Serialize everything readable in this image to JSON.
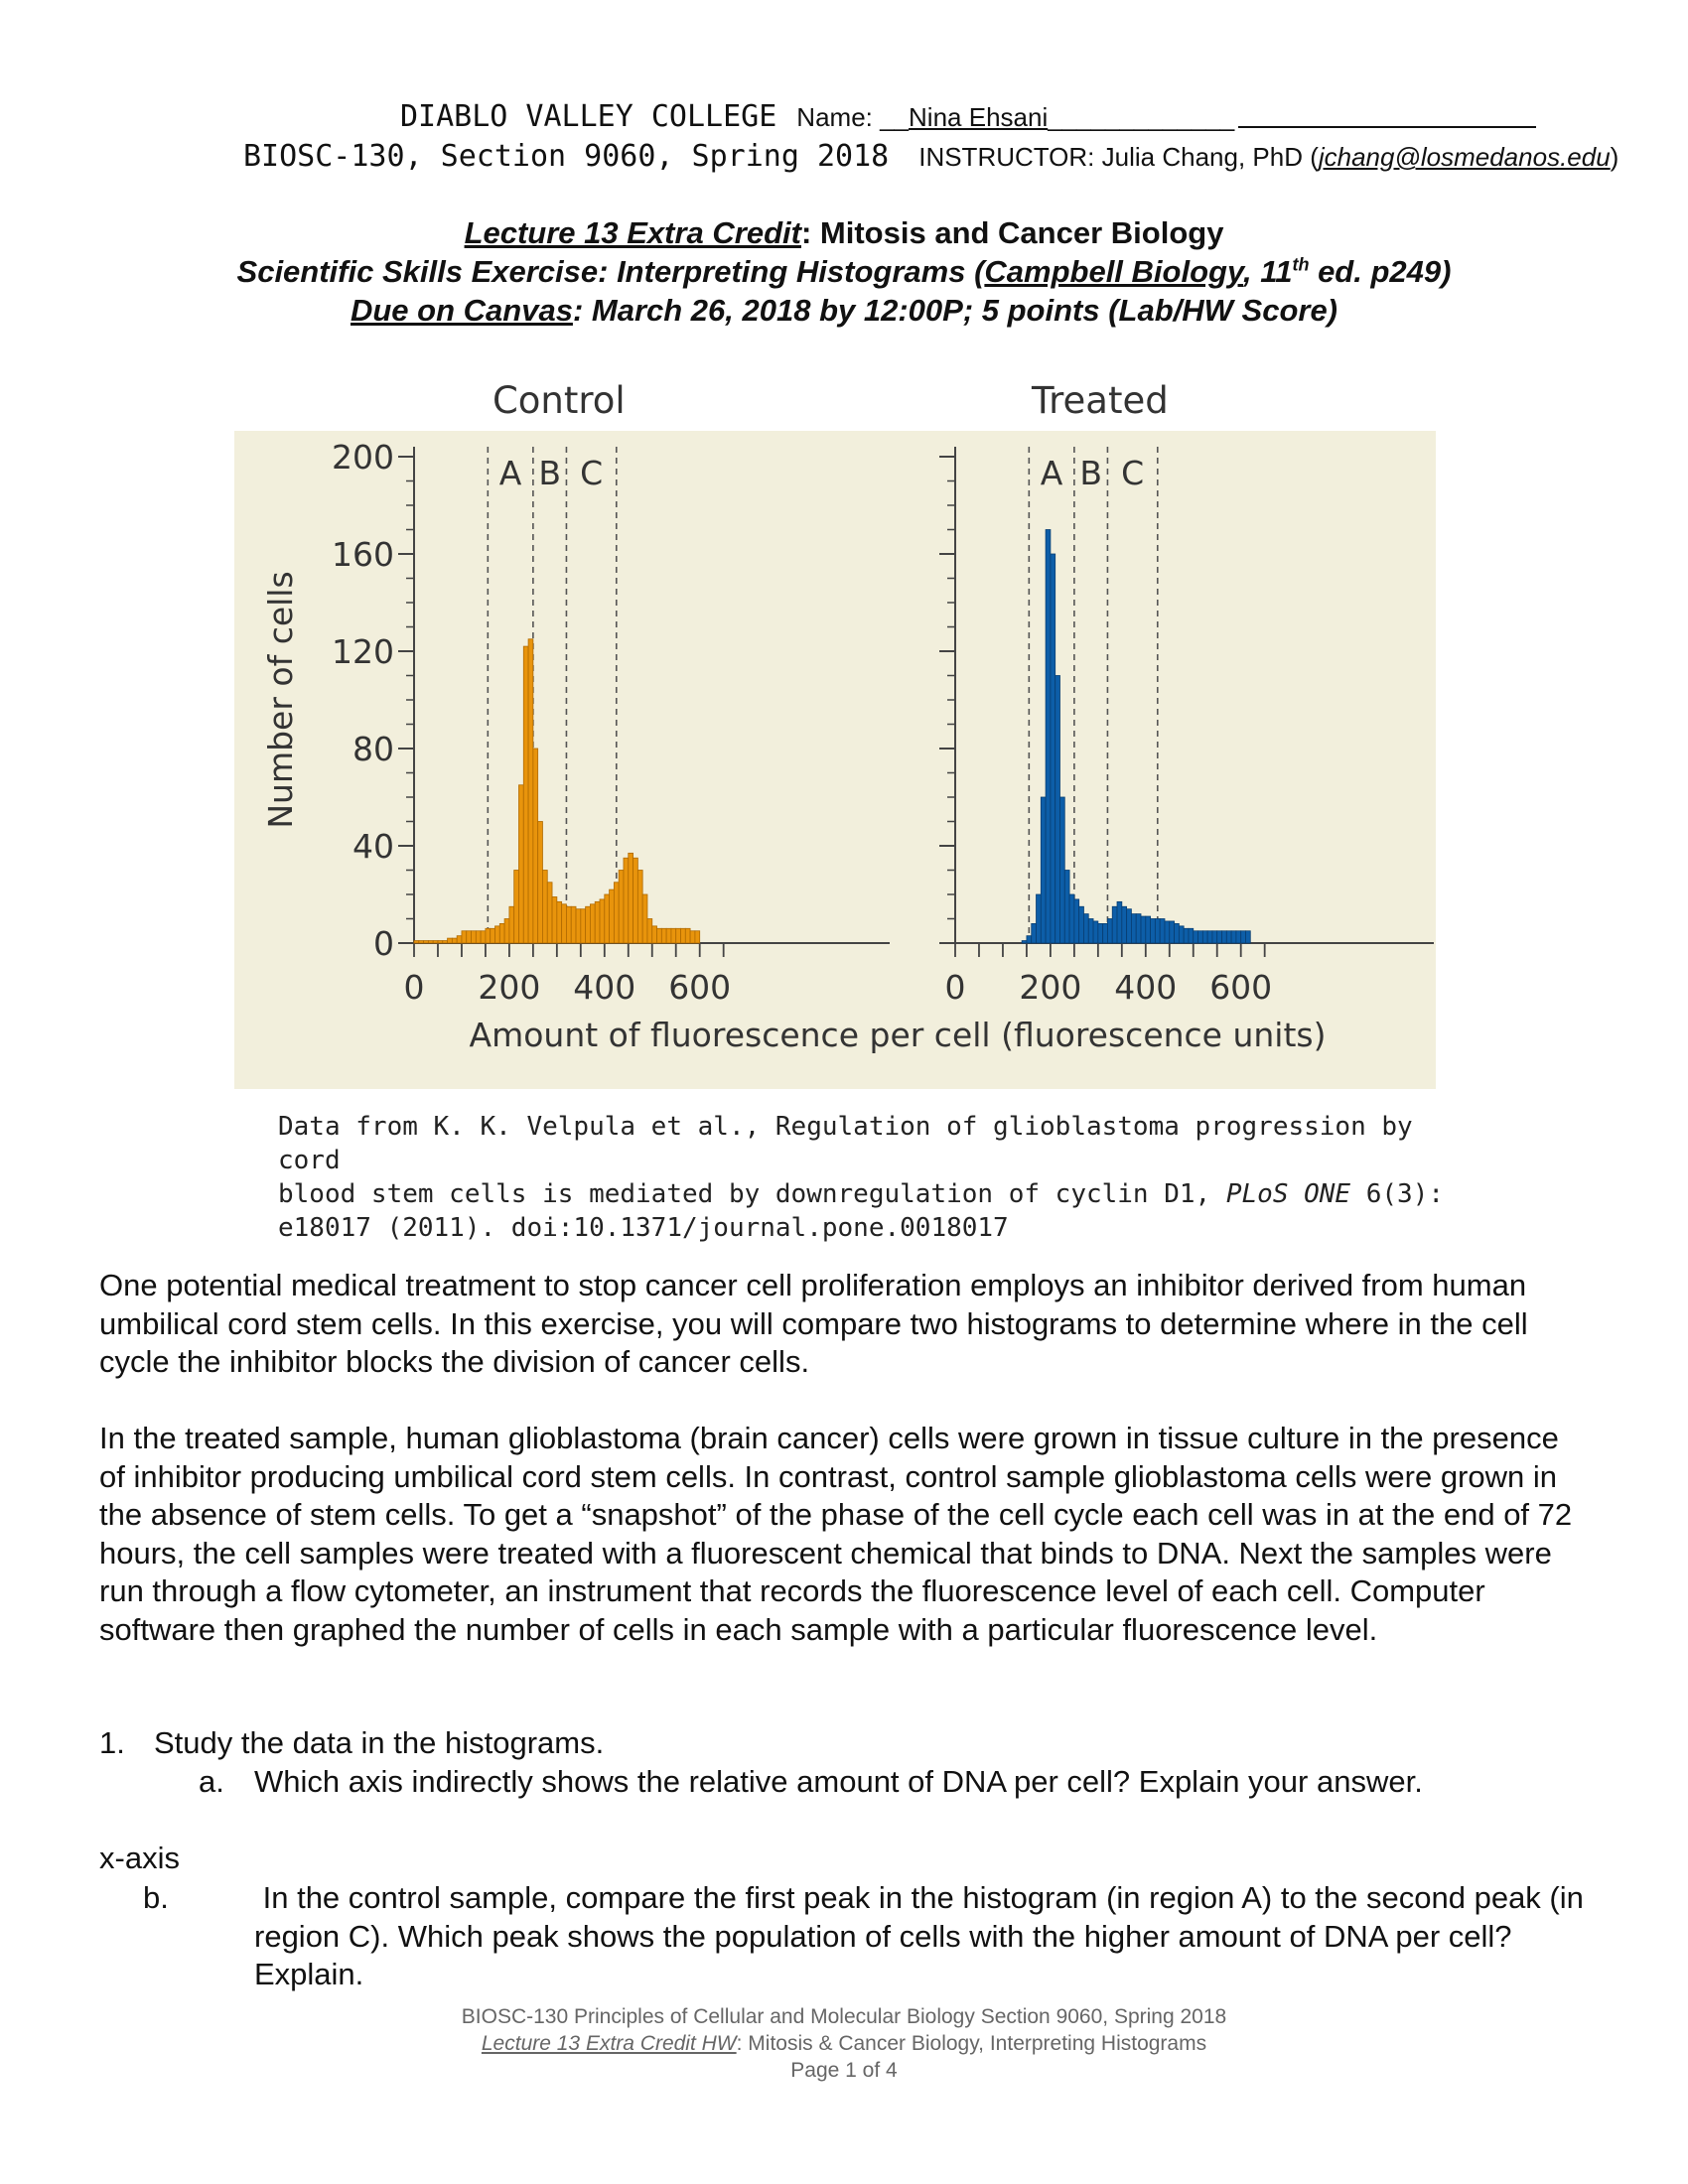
{
  "header": {
    "college": "DIABLO VALLEY COLLEGE",
    "name_label": "Name: __",
    "name_value": "Nina Ehsani",
    "name_trail": "_____________",
    "course": "BIOSC-130, Section 9060, Spring 2018",
    "instructor_label": "INSTRUCTOR: Julia Chang, PhD (",
    "instructor_email": "jchang@losmedanos.edu",
    "instructor_close": ")"
  },
  "title": {
    "lecture": "Lecture 13 Extra Credit",
    "lecture_rest": ": Mitosis and Cancer Biology",
    "skills_a": "Scientific Skills Exercise: Interpreting Histograms (",
    "skills_book": "Campbell Biology",
    "skills_b": ", 11",
    "skills_sup": "th",
    "skills_c": " ed. p249)",
    "due_a": "Due on Canvas",
    "due_b": ": March 26, 2018 by 12:00P; 5 points (Lab/HW Score)"
  },
  "colors": {
    "panel_bg": "#f2efdc",
    "control_bar": "#e8940c",
    "control_edge": "#b06a00",
    "treated_bar": "#0d5ea8",
    "treated_edge": "#083e72",
    "axis": "#444444"
  },
  "chart_data": {
    "type": "bar",
    "ylabel": "Number of cells",
    "xlabel": "Amount of fluorescence per cell (fluorescence units)",
    "ylim": [
      0,
      200
    ],
    "xlim": [
      0,
      650
    ],
    "yticks": [
      0,
      40,
      80,
      120,
      160,
      200
    ],
    "xticks": [
      0,
      200,
      400,
      600
    ],
    "bin_width": 10,
    "regions": [
      "A",
      "B",
      "C"
    ],
    "region_boundaries": [
      155,
      250,
      320,
      425
    ],
    "panels": [
      {
        "title": "Control",
        "series": [
          {
            "bins_start": 0,
            "values": [
              1,
              1,
              1,
              1,
              1,
              1,
              1,
              2,
              2,
              3,
              5,
              5,
              5,
              5,
              5,
              6,
              6,
              7,
              8,
              10,
              15,
              30,
              65,
              122,
              125,
              80,
              50,
              30,
              25,
              19,
              17,
              16,
              15,
              15,
              14,
              14,
              15,
              16,
              17,
              18,
              20,
              22,
              25,
              30,
              35,
              37,
              35,
              30,
              20,
              10,
              7,
              6,
              6,
              6,
              6,
              6,
              6,
              6,
              5,
              5
            ]
          }
        ]
      },
      {
        "title": "Treated",
        "series": [
          {
            "bins_start": 140,
            "values": [
              1,
              3,
              8,
              20,
              60,
              170,
              160,
              110,
              60,
              30,
              20,
              18,
              15,
              12,
              10,
              9,
              8,
              8,
              10,
              15,
              17,
              15,
              14,
              12,
              12,
              11,
              11,
              10,
              10,
              10,
              9,
              9,
              8,
              7,
              6,
              6,
              5,
              5,
              5,
              5,
              5,
              5,
              5,
              5,
              5,
              5,
              5,
              5
            ]
          }
        ]
      }
    ]
  },
  "citation": {
    "line1": "Data from K. K. Velpula et al., Regulation of glioblastoma progression by cord",
    "line2a": "blood stem cells is mediated by downregulation of cyclin D1, ",
    "line2_journal": "PLoS ONE",
    "line2b": " 6(3):",
    "line3": "e18017 (2011). doi:10.1371/journal.pone.0018017"
  },
  "body": {
    "p1": "One potential medical treatment to stop cancer cell proliferation employs an inhibitor derived from human umbilical cord stem cells. In this exercise, you will compare two histograms to determine where in the cell cycle the inhibitor blocks the division of cancer cells.",
    "p2": "In the treated sample, human glioblastoma (brain cancer) cells were grown in tissue culture in the presence of inhibitor producing umbilical cord stem cells. In contrast, control sample glioblastoma cells were grown in the absence of stem cells. To get a “snapshot” of the phase of the cell cycle each cell was in at the end of 72 hours, the cell samples were treated with a fluorescent chemical that binds to DNA. Next the samples were run through a flow cytometer, an instrument that records the fluorescence level of each cell. Computer software then graphed the number of cells in each sample with a particular fluorescence level."
  },
  "questions": {
    "q1_num": "1.",
    "q1_text": "Study the data in the histograms.",
    "q1a_num": "a.",
    "q1a_text": "Which axis indirectly shows the relative amount of DNA per cell? Explain your answer.",
    "answer_1a": "x-axis",
    "q1b_num": "b.",
    "q1b_text": " In the control sample, compare the first peak in the histogram (in region A) to the second peak (in region C). Which peak shows the population of cells with the higher amount of DNA per cell? Explain."
  },
  "footer": {
    "line1": "BIOSC-130 Principles of Cellular and Molecular Biology Section 9060, Spring 2018",
    "line2_link": "Lecture 13 Extra Credit HW",
    "line2_rest": ": Mitosis & Cancer Biology, Interpreting Histograms",
    "line3": "Page 1  of 4"
  }
}
